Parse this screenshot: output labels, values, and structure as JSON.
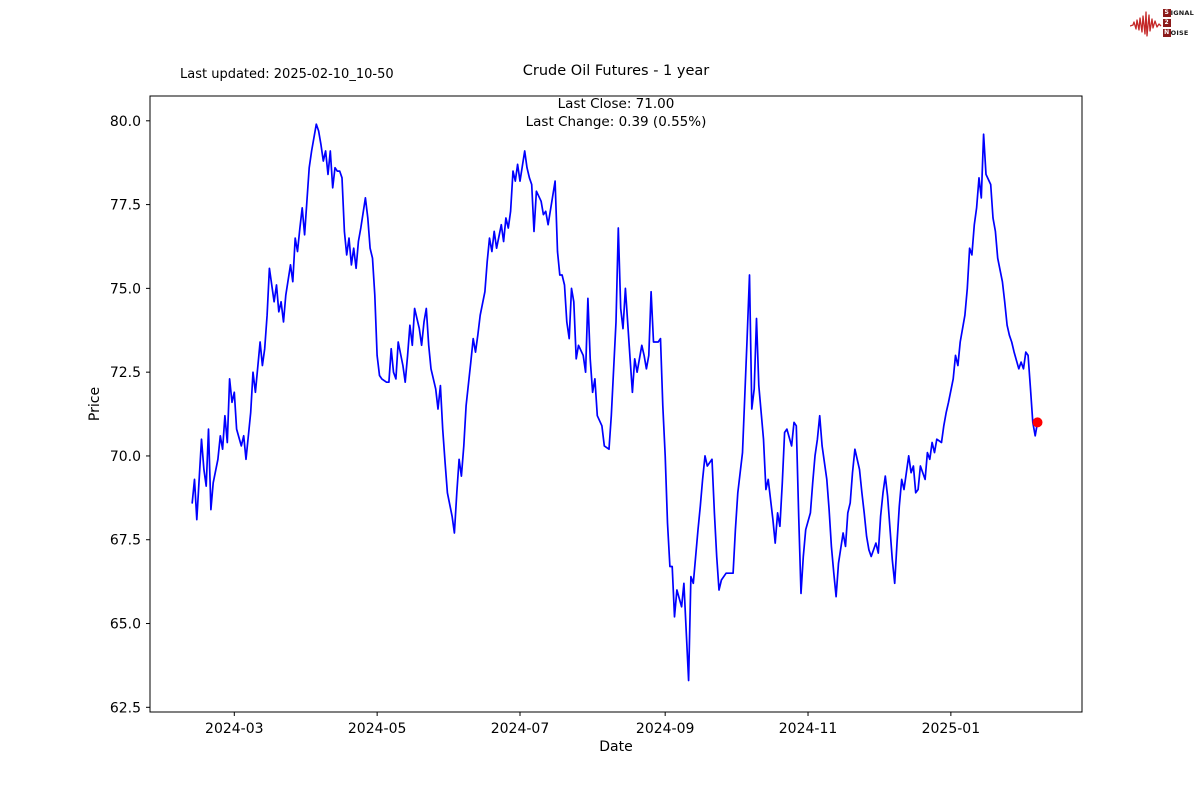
{
  "header": {
    "last_updated": "Last updated: 2025-02-10_10-50",
    "title": "Crude Oil Futures - 1 year",
    "subtitle_line1": "Last Close: 71.00",
    "subtitle_line2": "Last Change: 0.39 (0.55%)"
  },
  "logo": {
    "word1_first": "S",
    "word1_rest": "IGNAL",
    "mid": "2",
    "word2_first": "N",
    "word2_rest": "OISE",
    "box_color": "#8b1a1a",
    "wave_color": "#c42727"
  },
  "chart_data": {
    "type": "line",
    "title": "Crude Oil Futures - 1 year",
    "xlabel": "Date",
    "ylabel": "Price",
    "grid": false,
    "line_color": "#0000ff",
    "marker_color": "#ff0000",
    "last_close": 71.0,
    "last_change": 0.39,
    "last_change_pct": "0.55%",
    "x_tick_labels": [
      "2024-03",
      "2024-05",
      "2024-07",
      "2024-09",
      "2024-11",
      "2025-01"
    ],
    "x_tick_days": [
      18,
      79,
      140,
      202,
      263,
      324
    ],
    "y_ticks": [
      62.5,
      65.0,
      67.5,
      70.0,
      72.5,
      75.0,
      77.5,
      80.0
    ],
    "xlim_days": [
      -18,
      380
    ],
    "ylim": [
      62.36,
      80.74
    ],
    "points": [
      [
        0,
        68.6
      ],
      [
        1,
        69.3
      ],
      [
        2,
        68.1
      ],
      [
        4,
        70.5
      ],
      [
        5,
        69.6
      ],
      [
        6,
        69.1
      ],
      [
        7,
        70.8
      ],
      [
        8,
        68.4
      ],
      [
        9,
        69.2
      ],
      [
        11,
        69.9
      ],
      [
        12,
        70.6
      ],
      [
        13,
        70.2
      ],
      [
        14,
        71.2
      ],
      [
        15,
        70.4
      ],
      [
        16,
        72.3
      ],
      [
        17,
        71.6
      ],
      [
        18,
        71.9
      ],
      [
        19,
        70.8
      ],
      [
        21,
        70.3
      ],
      [
        22,
        70.6
      ],
      [
        23,
        69.9
      ],
      [
        25,
        71.3
      ],
      [
        26,
        72.5
      ],
      [
        27,
        71.9
      ],
      [
        29,
        73.4
      ],
      [
        30,
        72.7
      ],
      [
        31,
        73.2
      ],
      [
        32,
        74.2
      ],
      [
        33,
        75.6
      ],
      [
        35,
        74.6
      ],
      [
        36,
        75.1
      ],
      [
        37,
        74.3
      ],
      [
        38,
        74.6
      ],
      [
        39,
        74.0
      ],
      [
        40,
        74.8
      ],
      [
        42,
        75.7
      ],
      [
        43,
        75.2
      ],
      [
        44,
        76.5
      ],
      [
        45,
        76.1
      ],
      [
        46,
        76.8
      ],
      [
        47,
        77.4
      ],
      [
        48,
        76.6
      ],
      [
        49,
        77.6
      ],
      [
        50,
        78.6
      ],
      [
        51,
        79.1
      ],
      [
        53,
        79.9
      ],
      [
        54,
        79.7
      ],
      [
        55,
        79.3
      ],
      [
        56,
        78.8
      ],
      [
        57,
        79.1
      ],
      [
        58,
        78.4
      ],
      [
        59,
        79.1
      ],
      [
        60,
        78.0
      ],
      [
        61,
        78.6
      ],
      [
        62,
        78.5
      ],
      [
        63,
        78.5
      ],
      [
        64,
        78.3
      ],
      [
        65,
        76.7
      ],
      [
        66,
        76.0
      ],
      [
        67,
        76.5
      ],
      [
        68,
        75.7
      ],
      [
        69,
        76.2
      ],
      [
        70,
        75.6
      ],
      [
        71,
        76.4
      ],
      [
        72,
        76.8
      ],
      [
        74,
        77.7
      ],
      [
        75,
        77.1
      ],
      [
        76,
        76.2
      ],
      [
        77,
        75.9
      ],
      [
        78,
        74.8
      ],
      [
        79,
        73.0
      ],
      [
        80,
        72.4
      ],
      [
        81,
        72.3
      ],
      [
        83,
        72.2
      ],
      [
        84,
        72.2
      ],
      [
        85,
        73.2
      ],
      [
        86,
        72.5
      ],
      [
        87,
        72.3
      ],
      [
        88,
        73.4
      ],
      [
        90,
        72.7
      ],
      [
        91,
        72.2
      ],
      [
        92,
        73.0
      ],
      [
        93,
        73.9
      ],
      [
        94,
        73.3
      ],
      [
        95,
        74.4
      ],
      [
        97,
        73.8
      ],
      [
        98,
        73.3
      ],
      [
        99,
        74.0
      ],
      [
        100,
        74.4
      ],
      [
        101,
        73.3
      ],
      [
        102,
        72.6
      ],
      [
        104,
        72.0
      ],
      [
        105,
        71.4
      ],
      [
        106,
        72.1
      ],
      [
        107,
        70.8
      ],
      [
        108,
        69.8
      ],
      [
        109,
        68.9
      ],
      [
        111,
        68.2
      ],
      [
        112,
        67.7
      ],
      [
        113,
        68.9
      ],
      [
        114,
        69.9
      ],
      [
        115,
        69.4
      ],
      [
        116,
        70.3
      ],
      [
        117,
        71.5
      ],
      [
        119,
        72.8
      ],
      [
        120,
        73.5
      ],
      [
        121,
        73.1
      ],
      [
        122,
        73.6
      ],
      [
        123,
        74.2
      ],
      [
        125,
        74.9
      ],
      [
        126,
        75.8
      ],
      [
        127,
        76.5
      ],
      [
        128,
        76.1
      ],
      [
        129,
        76.7
      ],
      [
        130,
        76.2
      ],
      [
        132,
        76.9
      ],
      [
        133,
        76.4
      ],
      [
        134,
        77.1
      ],
      [
        135,
        76.8
      ],
      [
        136,
        77.3
      ],
      [
        137,
        78.5
      ],
      [
        138,
        78.2
      ],
      [
        139,
        78.7
      ],
      [
        140,
        78.2
      ],
      [
        142,
        79.1
      ],
      [
        143,
        78.6
      ],
      [
        144,
        78.3
      ],
      [
        145,
        78.1
      ],
      [
        146,
        76.7
      ],
      [
        147,
        77.9
      ],
      [
        149,
        77.6
      ],
      [
        150,
        77.2
      ],
      [
        151,
        77.3
      ],
      [
        152,
        76.9
      ],
      [
        155,
        78.2
      ],
      [
        156,
        76.1
      ],
      [
        157,
        75.4
      ],
      [
        158,
        75.4
      ],
      [
        159,
        75.1
      ],
      [
        160,
        74.0
      ],
      [
        161,
        73.5
      ],
      [
        162,
        75.0
      ],
      [
        163,
        74.6
      ],
      [
        164,
        72.9
      ],
      [
        165,
        73.3
      ],
      [
        167,
        73.0
      ],
      [
        168,
        72.5
      ],
      [
        169,
        74.7
      ],
      [
        170,
        72.9
      ],
      [
        171,
        71.9
      ],
      [
        172,
        72.3
      ],
      [
        173,
        71.2
      ],
      [
        175,
        70.9
      ],
      [
        176,
        70.3
      ],
      [
        178,
        70.2
      ],
      [
        179,
        71.2
      ],
      [
        181,
        74.0
      ],
      [
        182,
        76.8
      ],
      [
        183,
        74.4
      ],
      [
        184,
        73.8
      ],
      [
        185,
        75.0
      ],
      [
        187,
        72.9
      ],
      [
        188,
        71.9
      ],
      [
        189,
        72.9
      ],
      [
        190,
        72.5
      ],
      [
        192,
        73.3
      ],
      [
        193,
        73.0
      ],
      [
        194,
        72.6
      ],
      [
        195,
        73.0
      ],
      [
        196,
        74.9
      ],
      [
        197,
        73.4
      ],
      [
        199,
        73.4
      ],
      [
        200,
        73.5
      ],
      [
        201,
        71.5
      ],
      [
        202,
        70.0
      ],
      [
        203,
        68.0
      ],
      [
        204,
        66.7
      ],
      [
        205,
        66.7
      ],
      [
        206,
        65.2
      ],
      [
        207,
        66.0
      ],
      [
        209,
        65.5
      ],
      [
        210,
        66.2
      ],
      [
        212,
        63.3
      ],
      [
        213,
        66.4
      ],
      [
        214,
        66.2
      ],
      [
        216,
        67.8
      ],
      [
        217,
        68.5
      ],
      [
        218,
        69.3
      ],
      [
        219,
        70.0
      ],
      [
        220,
        69.7
      ],
      [
        222,
        69.9
      ],
      [
        223,
        68.3
      ],
      [
        224,
        67.0
      ],
      [
        225,
        66.0
      ],
      [
        226,
        66.3
      ],
      [
        228,
        66.5
      ],
      [
        229,
        66.5
      ],
      [
        231,
        66.5
      ],
      [
        232,
        67.8
      ],
      [
        233,
        68.9
      ],
      [
        235,
        70.1
      ],
      [
        236,
        71.8
      ],
      [
        237,
        73.5
      ],
      [
        238,
        75.4
      ],
      [
        239,
        71.4
      ],
      [
        240,
        72.0
      ],
      [
        241,
        74.1
      ],
      [
        242,
        72.1
      ],
      [
        244,
        70.5
      ],
      [
        245,
        69.0
      ],
      [
        246,
        69.3
      ],
      [
        248,
        68.1
      ],
      [
        249,
        67.4
      ],
      [
        250,
        68.3
      ],
      [
        251,
        67.9
      ],
      [
        252,
        69.2
      ],
      [
        253,
        70.7
      ],
      [
        254,
        70.8
      ],
      [
        256,
        70.3
      ],
      [
        257,
        71.0
      ],
      [
        258,
        70.9
      ],
      [
        259,
        68.2
      ],
      [
        260,
        65.9
      ],
      [
        261,
        67.0
      ],
      [
        262,
        67.8
      ],
      [
        264,
        68.3
      ],
      [
        265,
        69.2
      ],
      [
        266,
        70.0
      ],
      [
        267,
        70.5
      ],
      [
        268,
        71.2
      ],
      [
        269,
        70.3
      ],
      [
        271,
        69.3
      ],
      [
        272,
        68.4
      ],
      [
        273,
        67.3
      ],
      [
        274,
        66.5
      ],
      [
        275,
        65.8
      ],
      [
        276,
        66.8
      ],
      [
        278,
        67.7
      ],
      [
        279,
        67.3
      ],
      [
        280,
        68.3
      ],
      [
        281,
        68.6
      ],
      [
        282,
        69.5
      ],
      [
        283,
        70.2
      ],
      [
        285,
        69.6
      ],
      [
        286,
        68.9
      ],
      [
        287,
        68.3
      ],
      [
        288,
        67.6
      ],
      [
        289,
        67.2
      ],
      [
        290,
        67.0
      ],
      [
        292,
        67.4
      ],
      [
        293,
        67.1
      ],
      [
        294,
        68.2
      ],
      [
        295,
        68.9
      ],
      [
        296,
        69.4
      ],
      [
        297,
        68.8
      ],
      [
        299,
        66.9
      ],
      [
        300,
        66.2
      ],
      [
        301,
        67.4
      ],
      [
        302,
        68.5
      ],
      [
        303,
        69.3
      ],
      [
        304,
        69.0
      ],
      [
        306,
        70.0
      ],
      [
        307,
        69.5
      ],
      [
        308,
        69.7
      ],
      [
        309,
        68.9
      ],
      [
        310,
        69.0
      ],
      [
        311,
        69.7
      ],
      [
        313,
        69.3
      ],
      [
        314,
        70.1
      ],
      [
        315,
        69.9
      ],
      [
        316,
        70.4
      ],
      [
        317,
        70.1
      ],
      [
        318,
        70.5
      ],
      [
        320,
        70.4
      ],
      [
        321,
        70.9
      ],
      [
        322,
        71.3
      ],
      [
        323,
        71.6
      ],
      [
        325,
        72.3
      ],
      [
        326,
        73.0
      ],
      [
        327,
        72.7
      ],
      [
        328,
        73.4
      ],
      [
        330,
        74.2
      ],
      [
        331,
        75.0
      ],
      [
        332,
        76.2
      ],
      [
        333,
        76.0
      ],
      [
        334,
        76.9
      ],
      [
        335,
        77.4
      ],
      [
        336,
        78.3
      ],
      [
        337,
        77.7
      ],
      [
        338,
        79.6
      ],
      [
        339,
        78.4
      ],
      [
        341,
        78.1
      ],
      [
        342,
        77.1
      ],
      [
        343,
        76.7
      ],
      [
        344,
        75.9
      ],
      [
        346,
        75.2
      ],
      [
        347,
        74.6
      ],
      [
        348,
        73.9
      ],
      [
        349,
        73.6
      ],
      [
        350,
        73.4
      ],
      [
        351,
        73.1
      ],
      [
        353,
        72.6
      ],
      [
        354,
        72.8
      ],
      [
        355,
        72.6
      ],
      [
        356,
        73.1
      ],
      [
        357,
        73.0
      ],
      [
        358,
        72.0
      ],
      [
        359,
        71.0
      ],
      [
        360,
        70.6
      ],
      [
        361,
        71.0
      ]
    ]
  }
}
